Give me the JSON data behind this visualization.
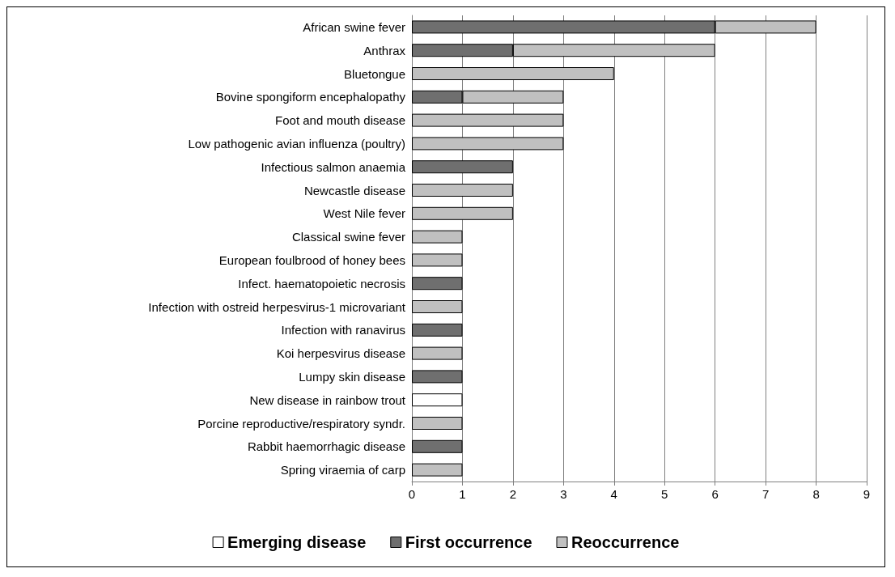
{
  "chart_data": {
    "type": "bar",
    "orientation": "horizontal",
    "stacked": true,
    "categories": [
      "African swine fever",
      "Anthrax",
      "Bluetongue",
      "Bovine spongiform encephalopathy",
      "Foot and mouth disease",
      "Low pathogenic avian influenza (poultry)",
      "Infectious salmon anaemia",
      "Newcastle disease",
      "West Nile fever",
      "Classical swine fever",
      "European foulbrood of honey bees",
      "Infect. haematopoietic necrosis",
      "Infection with ostreid herpesvirus-1 microvariant",
      "Infection with ranavirus",
      "Koi herpesvirus disease",
      "Lumpy skin disease",
      "New disease in rainbow trout",
      "Porcine reproductive/respiratory syndr.",
      "Rabbit haemorrhagic disease",
      "Spring viraemia of carp"
    ],
    "series": [
      {
        "name": "Emerging disease",
        "color": "#ffffff",
        "values": [
          null,
          null,
          null,
          null,
          null,
          null,
          null,
          null,
          null,
          null,
          null,
          null,
          null,
          null,
          null,
          null,
          1,
          null,
          null,
          null
        ]
      },
      {
        "name": "First occurrence",
        "color": "#6f6f6f",
        "values": [
          6,
          2,
          null,
          1,
          null,
          null,
          2,
          null,
          null,
          null,
          null,
          1,
          null,
          1,
          null,
          1,
          null,
          null,
          1,
          null
        ]
      },
      {
        "name": "Reoccurrence",
        "color": "#c0c0c0",
        "values": [
          2,
          4,
          4,
          2,
          3,
          3,
          null,
          2,
          2,
          1,
          1,
          null,
          1,
          null,
          1,
          null,
          null,
          1,
          null,
          1
        ]
      }
    ],
    "xlim": [
      0,
      9
    ],
    "xticks": [
      0,
      1,
      2,
      3,
      4,
      5,
      6,
      7,
      8,
      9
    ],
    "grid": "x",
    "legend": "bottom"
  }
}
